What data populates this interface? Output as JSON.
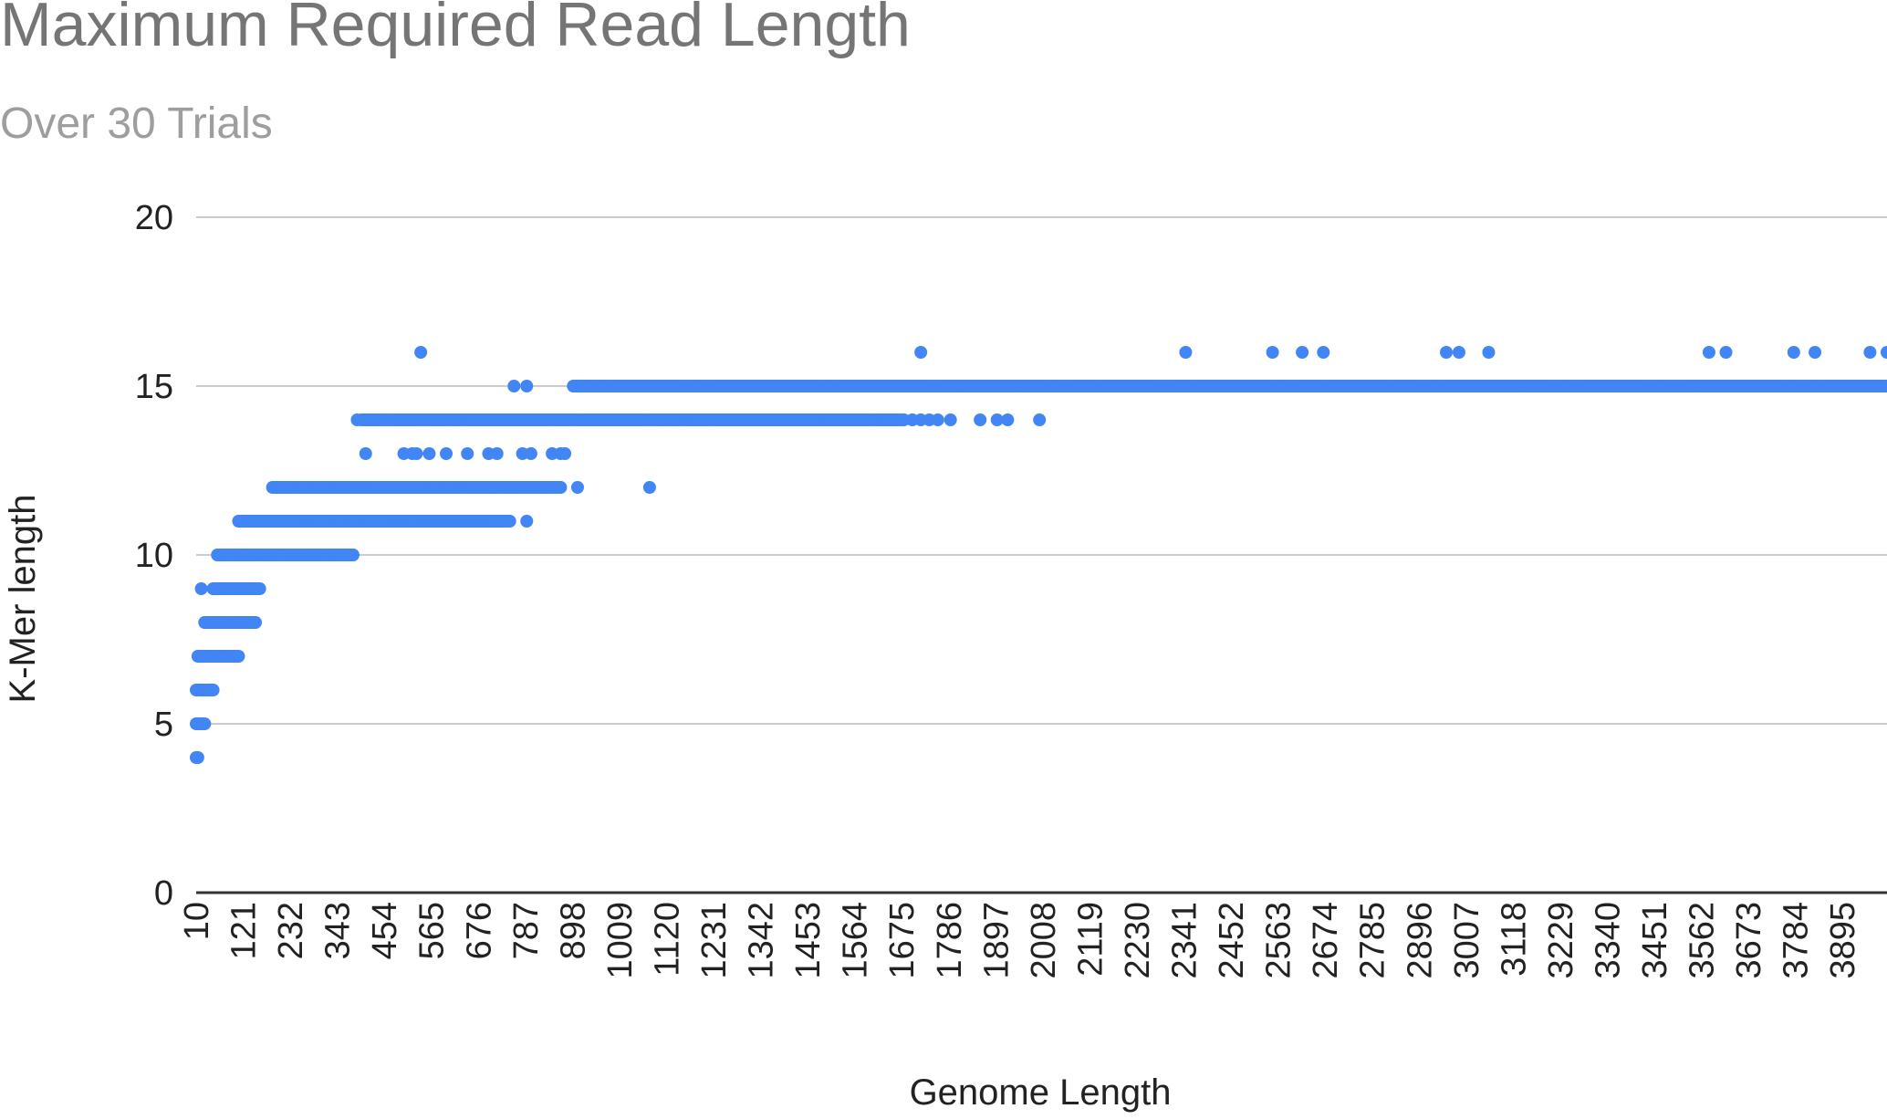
{
  "chart_data": {
    "type": "scatter",
    "title": "Maximum Required Read Length",
    "subtitle": "Over 30 Trials",
    "xlabel": "Genome Length",
    "ylabel": "K-Mer length",
    "xlim": [
      10,
      4000
    ],
    "ylim": [
      0,
      20
    ],
    "y_ticks": [
      0,
      5,
      10,
      15,
      20
    ],
    "x_tick_labels": [
      "10",
      "121",
      "232",
      "343",
      "454",
      "565",
      "676",
      "787",
      "898",
      "1009",
      "1120",
      "1231",
      "1342",
      "1453",
      "1564",
      "1675",
      "1786",
      "1897",
      "2008",
      "2119",
      "2230",
      "2341",
      "2452",
      "2563",
      "2674",
      "2785",
      "2896",
      "3007",
      "3118",
      "3229",
      "3340",
      "3451",
      "3562",
      "3673",
      "3784",
      "3895"
    ],
    "grid": true,
    "legend": "none",
    "point_color": "#4285f4",
    "series": [
      {
        "ranges": [
          [
            10,
            14,
            4
          ],
          [
            10,
            30,
            5
          ],
          [
            10,
            50,
            6
          ],
          [
            14,
            110,
            7
          ],
          [
            30,
            150,
            8
          ],
          [
            50,
            160,
            9
          ],
          [
            60,
            380,
            10
          ],
          [
            110,
            750,
            11
          ],
          [
            190,
            870,
            12
          ],
          [
            400,
            1680,
            14
          ],
          [
            900,
            4000,
            15
          ]
        ],
        "points": [
          [
            22,
            9
          ],
          [
            120,
            11
          ],
          [
            155,
            11
          ],
          [
            380,
            10
          ],
          [
            720,
            11
          ],
          [
            790,
            11
          ],
          [
            390,
            14
          ],
          [
            410,
            13
          ],
          [
            450,
            14
          ],
          [
            470,
            14
          ],
          [
            500,
            13
          ],
          [
            520,
            13
          ],
          [
            530,
            13
          ],
          [
            560,
            13
          ],
          [
            600,
            13
          ],
          [
            650,
            13
          ],
          [
            700,
            13
          ],
          [
            720,
            13
          ],
          [
            780,
            13
          ],
          [
            800,
            13
          ],
          [
            850,
            13
          ],
          [
            870,
            13
          ],
          [
            880,
            13
          ],
          [
            780,
            12
          ],
          [
            800,
            12
          ],
          [
            840,
            12
          ],
          [
            860,
            12
          ],
          [
            910,
            12
          ],
          [
            1080,
            12
          ],
          [
            760,
            15
          ],
          [
            790,
            15
          ],
          [
            1700,
            14
          ],
          [
            1720,
            14
          ],
          [
            1740,
            14
          ],
          [
            1760,
            14
          ],
          [
            1790,
            14
          ],
          [
            1860,
            14
          ],
          [
            1900,
            14
          ],
          [
            1925,
            14
          ],
          [
            2000,
            14
          ],
          [
            540,
            16
          ],
          [
            1720,
            16
          ],
          [
            2345,
            16
          ],
          [
            2550,
            16
          ],
          [
            2620,
            16
          ],
          [
            2670,
            16
          ],
          [
            2960,
            16
          ],
          [
            2990,
            16
          ],
          [
            3060,
            16
          ],
          [
            3580,
            16
          ],
          [
            3620,
            16
          ],
          [
            3780,
            16
          ],
          [
            3830,
            16
          ],
          [
            3960,
            16
          ],
          [
            4000,
            16
          ]
        ]
      }
    ]
  }
}
